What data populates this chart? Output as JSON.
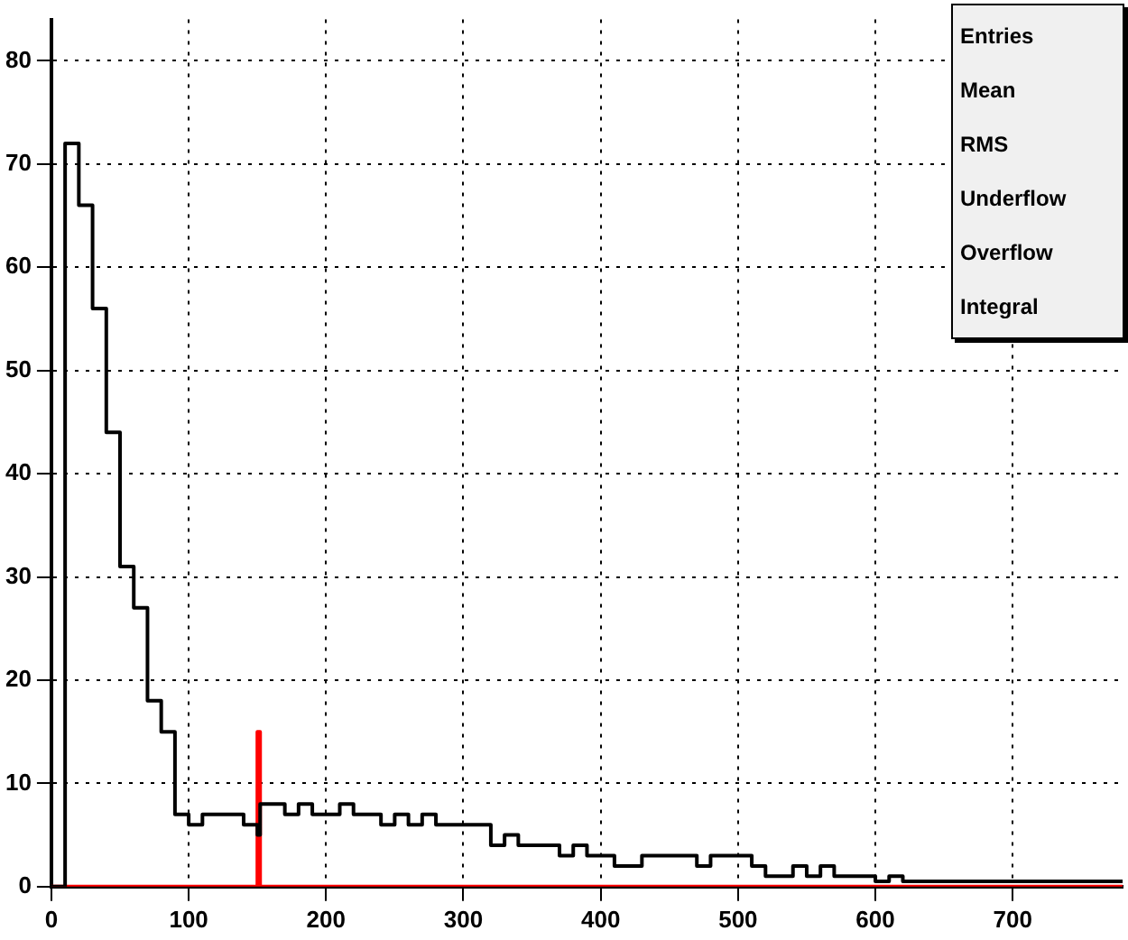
{
  "chart_data": {
    "type": "histogram",
    "bins": [
      0,
      10,
      20,
      30,
      40,
      50,
      60,
      70,
      80,
      90,
      100,
      110,
      120,
      130,
      140,
      150,
      152,
      160,
      170,
      180,
      190,
      200,
      210,
      220,
      230,
      240,
      250,
      260,
      270,
      280,
      290,
      300,
      310,
      320,
      330,
      340,
      350,
      360,
      370,
      380,
      390,
      400,
      410,
      420,
      430,
      440,
      450,
      460,
      470,
      480,
      490,
      500,
      510,
      520,
      530,
      540,
      550,
      560,
      570,
      580,
      590,
      600,
      610,
      620,
      630,
      640,
      650,
      660,
      670,
      680,
      690,
      700,
      710,
      720,
      730,
      740,
      750,
      760,
      770,
      780
    ],
    "series": [
      {
        "color": "#000000",
        "values": [
          0,
          72,
          66,
          56,
          44,
          31,
          27,
          18,
          15,
          7,
          6,
          7,
          7,
          7,
          6,
          5,
          8,
          8,
          7,
          8,
          7,
          7,
          8,
          7,
          7,
          6,
          7,
          6,
          7,
          6,
          6,
          6,
          6,
          4,
          5,
          4,
          4,
          4,
          3,
          4,
          3,
          3,
          2,
          2,
          3,
          3,
          3,
          3,
          2,
          3,
          3,
          3,
          2,
          1,
          1,
          2,
          1,
          2,
          1,
          1,
          1,
          0.5,
          1,
          0.5,
          0.5,
          0.5,
          0.5,
          0.5,
          0.5,
          0.5,
          0.5,
          0.5,
          0.5,
          0.5,
          0.5,
          0.5,
          0.5,
          0.5,
          0.5
        ]
      },
      {
        "color": "#ff0000",
        "values": [
          0,
          0,
          0,
          0,
          0,
          0,
          0,
          0,
          0,
          0,
          0,
          0,
          0,
          0,
          0,
          15,
          0,
          0,
          0,
          0,
          0,
          0,
          0,
          0,
          0,
          0,
          0,
          0,
          0,
          0,
          0,
          0,
          0,
          0,
          0,
          0,
          0,
          0,
          0,
          0,
          0,
          0,
          0,
          0,
          0,
          0,
          0,
          0,
          0,
          0,
          0,
          0,
          0,
          0,
          0,
          0,
          0,
          0,
          0,
          0,
          0,
          0,
          0,
          0,
          0,
          0,
          0,
          0,
          0,
          0,
          0,
          0,
          0,
          0,
          0,
          0,
          0,
          0,
          0
        ]
      }
    ],
    "xlim": [
      0,
      780
    ],
    "xticks": [
      0,
      100,
      200,
      300,
      400,
      500,
      600,
      700
    ],
    "ylim": [
      0,
      84
    ],
    "yticks": [
      0,
      10,
      20,
      30,
      40,
      50,
      60,
      70,
      80
    ],
    "grid": true,
    "legend": false,
    "annotations": [
      "Entries",
      "Mean",
      "RMS",
      "Underflow",
      "Overflow",
      "Integral"
    ]
  }
}
